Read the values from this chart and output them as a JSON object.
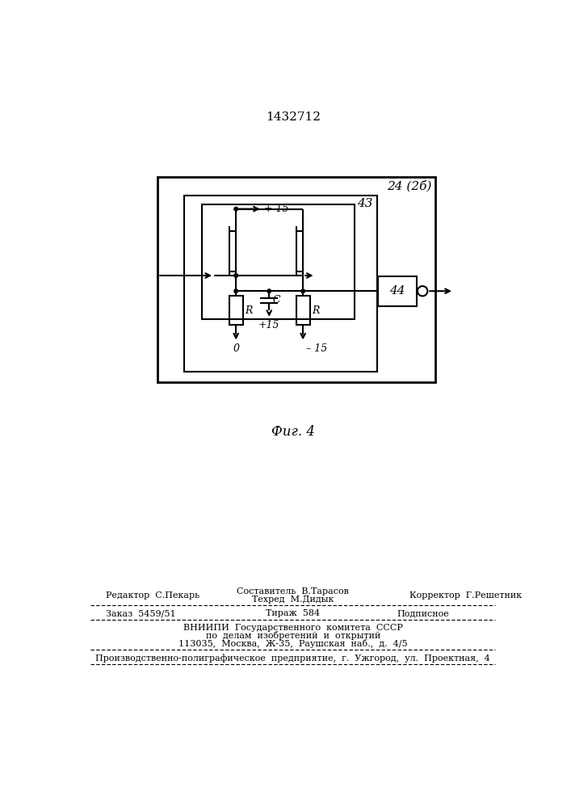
{
  "title": "1432712",
  "fig_label": "Фиг. 4",
  "label_24_26": "24 (2б)",
  "label_43": "43",
  "label_44": "44",
  "label_plus15_top": "+ 15",
  "label_0": "0",
  "label_plus15_bot": "+15",
  "label_minus15": "– 15",
  "label_R1": "R",
  "label_R2": "R",
  "label_C": "C",
  "footer_line1": "Составитель  В.Тарасов",
  "footer_line2": "Техред  М.Дидык",
  "footer_editor": "Редактор  С.Пекарь",
  "footer_corrector": "Корректор  Г.Решетник",
  "footer_order": "Заказ  5459/51",
  "footer_tirazh": "Тираж  584",
  "footer_podpisnoe": "Подписное",
  "footer_vniip1": "ВНИИПИ  Государственного  комитета  СССР",
  "footer_vniip2": "по  делам  изобретений  и  открытий",
  "footer_vniip3": "113035,  Москва,  Ж-35,  Раушская  наб.,  д.  4/5",
  "footer_prod": "Производственно-полиграфическое  предприятие,  г.  Ужгород,  ул.  Проектная,  4",
  "bg_color": "#ffffff"
}
